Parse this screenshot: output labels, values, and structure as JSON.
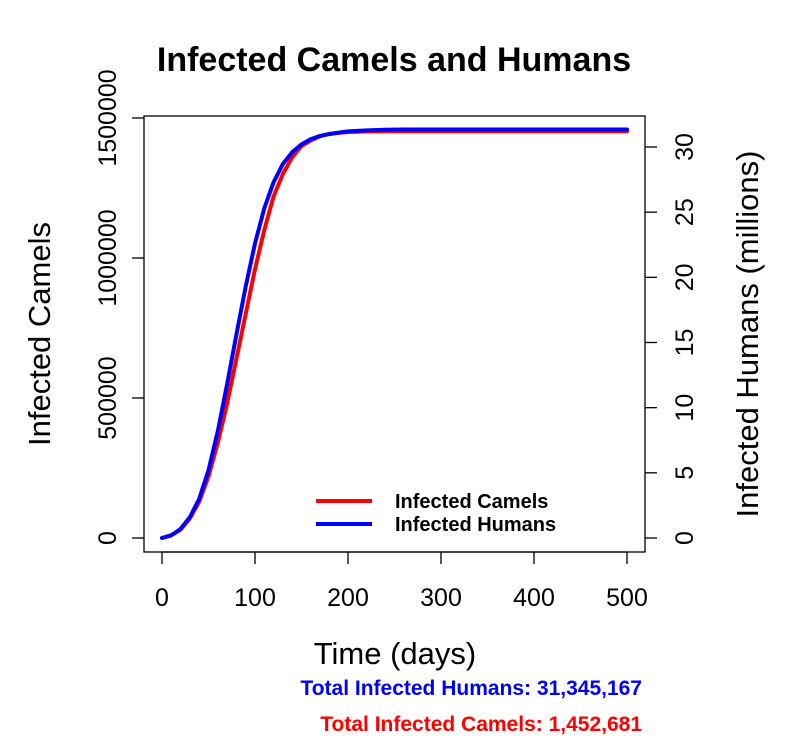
{
  "colors": {
    "camels": "#ff0000",
    "humans": "#0000ff"
  },
  "chart_data": {
    "type": "line",
    "title": "Infected Camels and Humans",
    "xlabel": "Time (days)",
    "ylabel_left": "Infected Camels",
    "ylabel_right": "Infected Humans (millions)",
    "xlim": [
      0,
      500
    ],
    "ylim_left": [
      -80000,
      1500000
    ],
    "ylim_right": [
      -1.7,
      31.3
    ],
    "x_ticks": [
      0,
      100,
      200,
      300,
      400,
      500
    ],
    "x_tick_labels": [
      "0",
      "100",
      "200",
      "300",
      "400",
      "500"
    ],
    "y_left_ticks": [
      0,
      500000,
      1000000,
      1500000
    ],
    "y_left_tick_labels": [
      "0",
      "500000",
      "1000000",
      "1500000"
    ],
    "y_right_ticks": [
      0,
      5,
      10,
      15,
      20,
      25,
      30
    ],
    "y_right_tick_labels": [
      "0",
      "5",
      "10",
      "15",
      "20",
      "25",
      "30"
    ],
    "grid": false,
    "legend_position": "bottom-right",
    "series": [
      {
        "name": "Infected Camels",
        "axis": "left",
        "color": "#ff0000",
        "x": [
          0,
          10,
          20,
          30,
          40,
          50,
          60,
          70,
          80,
          90,
          100,
          110,
          120,
          130,
          140,
          150,
          160,
          170,
          180,
          190,
          200,
          220,
          240,
          260,
          280,
          300,
          350,
          400,
          450,
          500
        ],
        "values": [
          0,
          10000,
          30000,
          70000,
          130000,
          220000,
          340000,
          480000,
          640000,
          800000,
          960000,
          1100000,
          1220000,
          1300000,
          1360000,
          1400000,
          1420000,
          1435000,
          1443000,
          1447000,
          1450000,
          1452000,
          1452500,
          1452681,
          1452681,
          1452681,
          1452681,
          1452681,
          1452681,
          1452681
        ]
      },
      {
        "name": "Infected Humans",
        "axis": "right",
        "color": "#0000ff",
        "x": [
          0,
          10,
          20,
          30,
          40,
          50,
          60,
          70,
          80,
          90,
          100,
          110,
          120,
          130,
          140,
          150,
          160,
          170,
          180,
          190,
          200,
          220,
          240,
          260,
          280,
          300,
          350,
          400,
          450,
          500
        ],
        "values": [
          0,
          0.2,
          0.7,
          1.6,
          3.0,
          5.2,
          8.2,
          11.8,
          15.6,
          19.3,
          22.6,
          25.3,
          27.3,
          28.7,
          29.6,
          30.2,
          30.6,
          30.85,
          31.0,
          31.1,
          31.2,
          31.28,
          31.32,
          31.34,
          31.345,
          31.345,
          31.345,
          31.345,
          31.345,
          31.345
        ]
      }
    ]
  },
  "legend": {
    "items": [
      {
        "label": "Infected Camels",
        "color": "#ff0000"
      },
      {
        "label": "Infected Humans",
        "color": "#0000ff"
      }
    ]
  },
  "footer": {
    "humans_total": "Total Infected Humans: 31,345,167",
    "camels_total": "Total Infected Camels: 1,452,681"
  }
}
